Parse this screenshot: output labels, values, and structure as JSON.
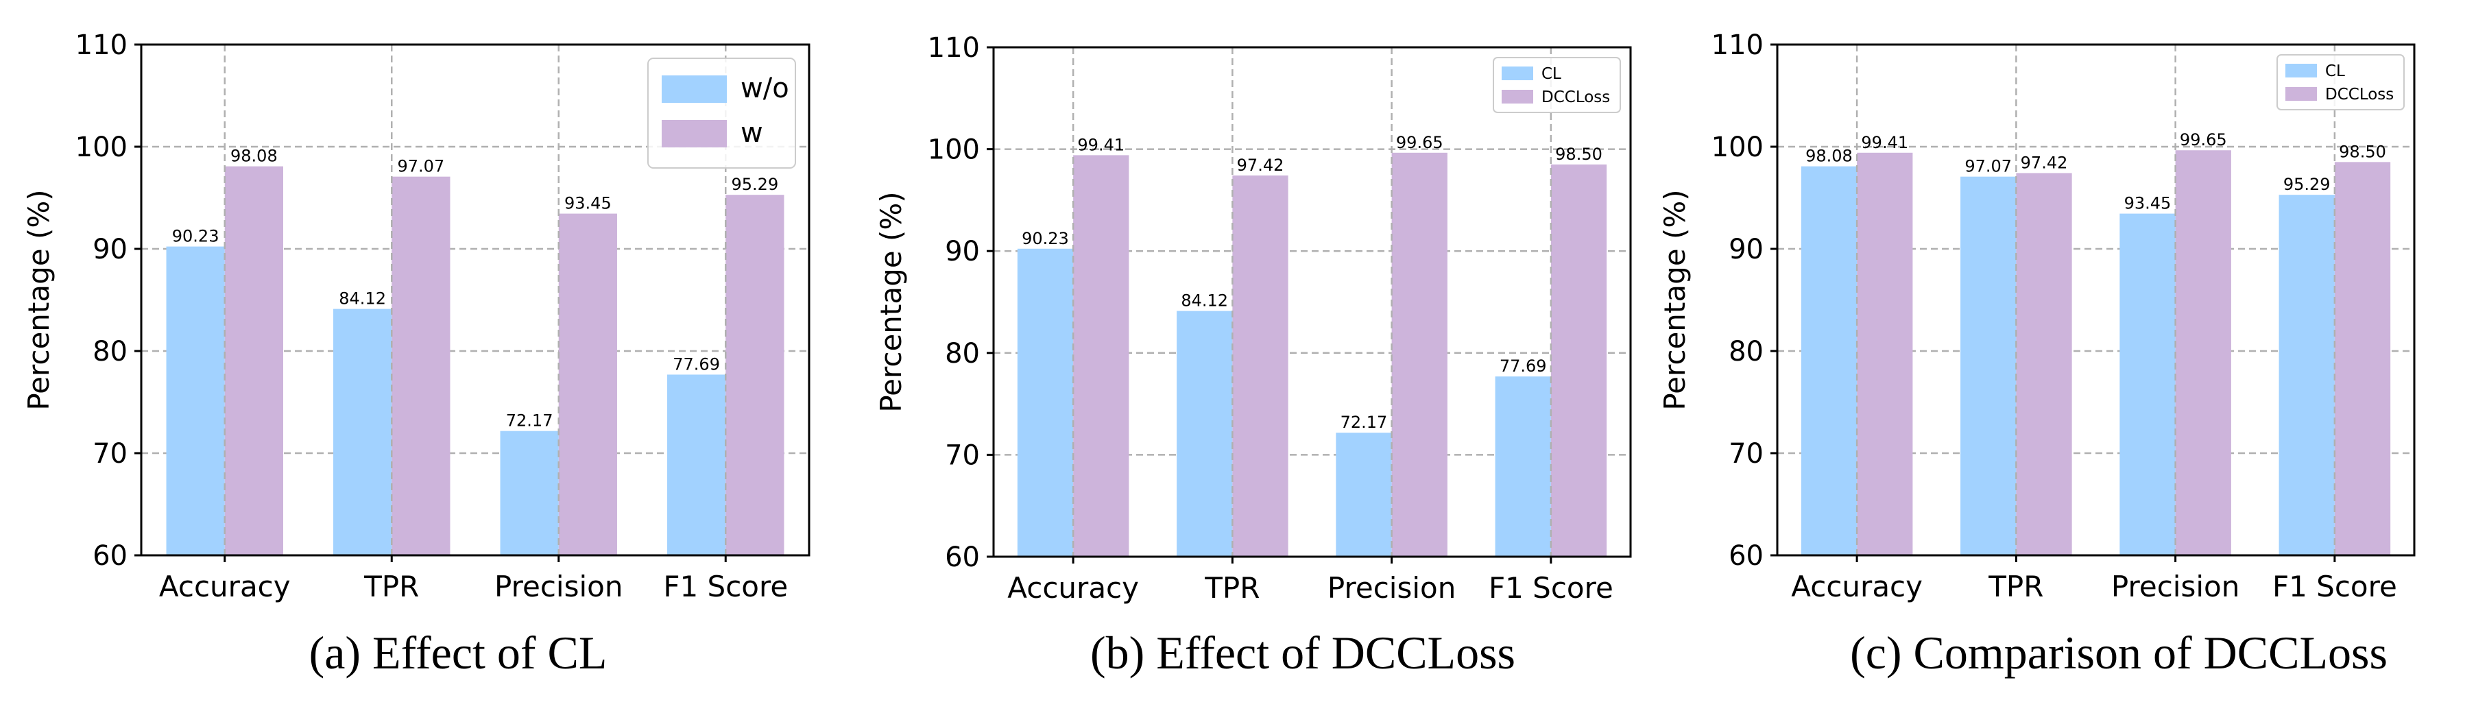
{
  "colors": {
    "series_a": "#a2d2ff",
    "series_b": "#cdb4db",
    "grid": "#b0b0b0",
    "axis": "#000000"
  },
  "chart_data": [
    {
      "type": "bar",
      "caption": "(a) Effect of CL",
      "categories": [
        "Accuracy",
        "TPR",
        "Precision",
        "F1 Score"
      ],
      "series": [
        {
          "name": "w/o",
          "values": [
            90.23,
            84.12,
            72.17,
            77.69
          ],
          "color": "#a2d2ff"
        },
        {
          "name": "w",
          "values": [
            98.08,
            97.07,
            93.45,
            95.29
          ],
          "color": "#cdb4db"
        }
      ],
      "value_labels": [
        [
          "90.23",
          "84.12",
          "72.17",
          "77.69"
        ],
        [
          "98.08",
          "97.07",
          "93.45",
          "95.29"
        ]
      ],
      "ylabel": "Percentage (%)",
      "ylim": [
        60,
        110
      ],
      "yticks": [
        "60",
        "70",
        "80",
        "90",
        "100",
        "110"
      ],
      "grid": true,
      "legend": "top-right",
      "legend_size": "large"
    },
    {
      "type": "bar",
      "caption": "(b) Effect of DCCLoss",
      "categories": [
        "Accuracy",
        "TPR",
        "Precision",
        "F1 Score"
      ],
      "series": [
        {
          "name": "CL",
          "values": [
            90.23,
            84.12,
            72.17,
            77.69
          ],
          "color": "#a2d2ff"
        },
        {
          "name": "DCCLoss",
          "values": [
            99.41,
            97.42,
            99.65,
            98.5
          ],
          "color": "#cdb4db"
        }
      ],
      "value_labels": [
        [
          "90.23",
          "84.12",
          "72.17",
          "77.69"
        ],
        [
          "99.41",
          "97.42",
          "99.65",
          "98.50"
        ]
      ],
      "ylabel": "Percentage (%)",
      "ylim": [
        60,
        110
      ],
      "yticks": [
        "60",
        "70",
        "80",
        "90",
        "100",
        "110"
      ],
      "grid": true,
      "legend": "top-right",
      "legend_size": "small"
    },
    {
      "type": "bar",
      "caption": "(c) Comparison of DCCLoss",
      "categories": [
        "Accuracy",
        "TPR",
        "Precision",
        "F1 Score"
      ],
      "series": [
        {
          "name": "CL",
          "values": [
            98.08,
            97.07,
            93.45,
            95.29
          ],
          "color": "#a2d2ff"
        },
        {
          "name": "DCCLoss",
          "values": [
            99.41,
            97.42,
            99.65,
            98.5
          ],
          "color": "#cdb4db"
        }
      ],
      "value_labels": [
        [
          "98.08",
          "97.07",
          "93.45",
          "95.29"
        ],
        [
          "99.41",
          "97.42",
          "99.65",
          "98.50"
        ]
      ],
      "ylabel": "Percentage (%)",
      "ylim": [
        60,
        110
      ],
      "yticks": [
        "60",
        "70",
        "80",
        "90",
        "100",
        "110"
      ],
      "grid": true,
      "legend": "top-right",
      "legend_size": "small"
    }
  ]
}
